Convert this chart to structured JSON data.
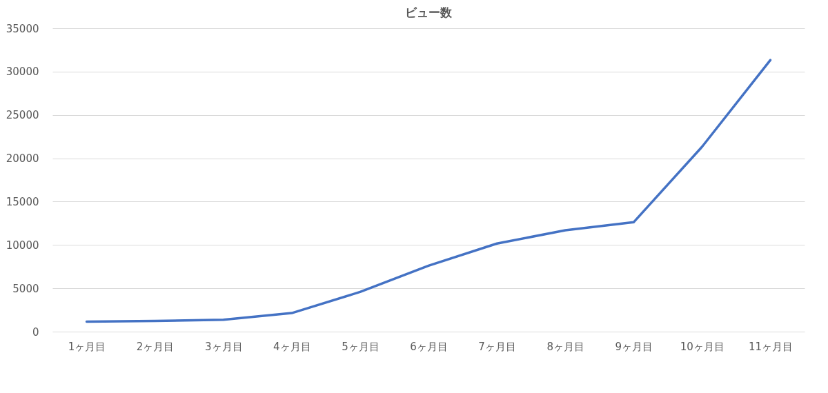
{
  "chart_data": {
    "type": "line",
    "title": "ビュー数",
    "categories": [
      "1ヶ月目",
      "2ヶ月目",
      "3ヶ月目",
      "4ヶ月目",
      "5ヶ月目",
      "6ヶ月目",
      "7ヶ月目",
      "8ヶ月目",
      "9ヶ月目",
      "10ヶ月目",
      "11ヶ月目"
    ],
    "series": [
      {
        "color": "#4472c4",
        "values": [
          1150,
          1230,
          1380,
          2140,
          4580,
          7600,
          10160,
          11690,
          12620,
          21320,
          31330
        ]
      }
    ],
    "ylim": [
      0,
      35000
    ],
    "yticks": [
      0,
      5000,
      10000,
      15000,
      20000,
      25000,
      30000,
      35000
    ],
    "grid": "y",
    "marker": "none",
    "line_style": "solid"
  }
}
